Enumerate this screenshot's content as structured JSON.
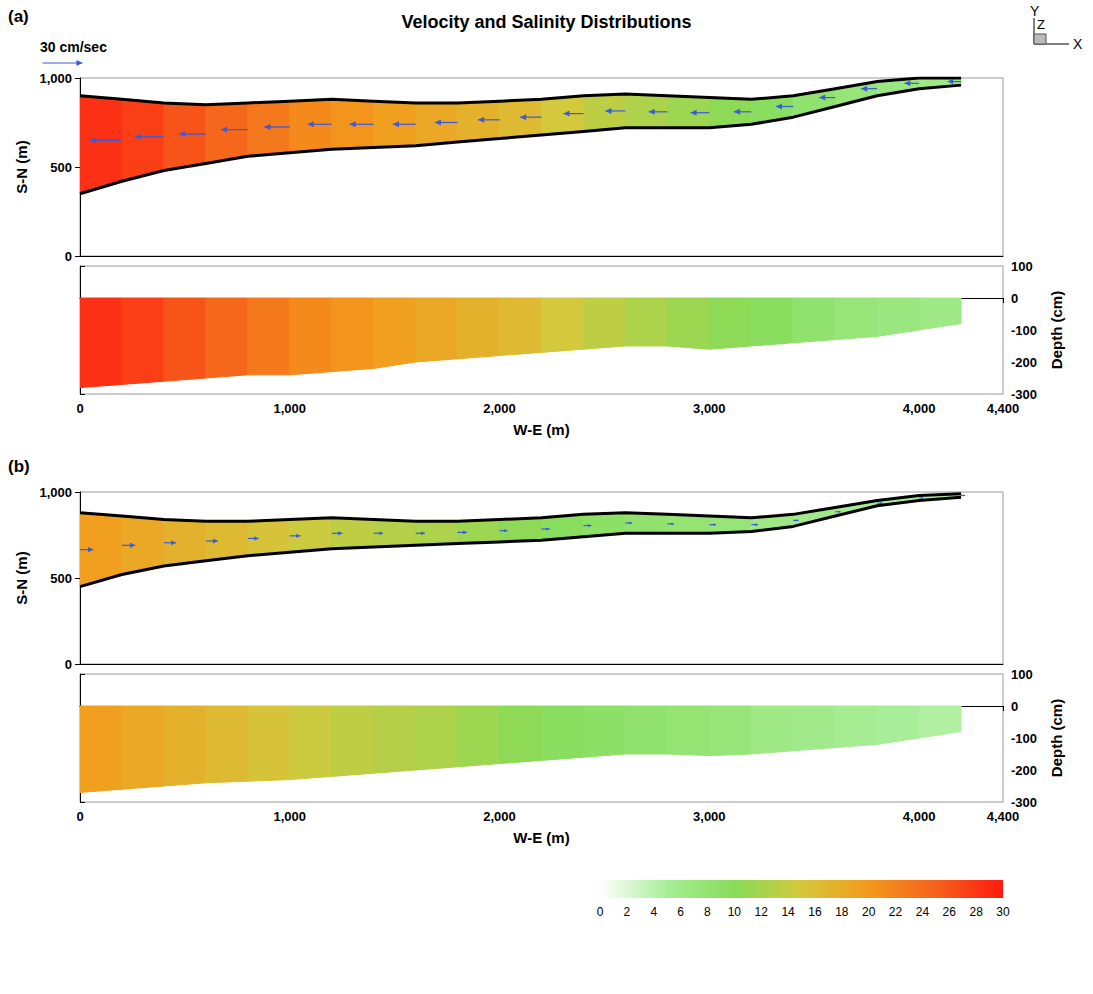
{
  "title": "Velocity and Salinity Distributions",
  "velocity_scale": {
    "label": "30 cm/sec",
    "value": 30
  },
  "triad": [
    "X",
    "Y",
    "Z"
  ],
  "colorbar": {
    "range": [
      0,
      30
    ],
    "ticks": [
      0,
      2,
      4,
      6,
      8,
      10,
      12,
      14,
      16,
      18,
      20,
      22,
      24,
      26,
      28,
      30
    ],
    "colors": [
      "#ffffff",
      "#a8ee98",
      "#86dc5a",
      "#d4c83c",
      "#f39a1c",
      "#f5621c",
      "#ff1a10"
    ]
  },
  "chart_data": [
    {
      "panel": "(a)",
      "type": "custom",
      "xlabel": "W-E (m)",
      "ylabel": "S-N (m)",
      "y2label": "Depth (cm)",
      "xlim": [
        0,
        4400
      ],
      "xticks": [
        0,
        1000,
        2000,
        3000,
        4000
      ],
      "ylim": [
        0,
        1000
      ],
      "yticks": [
        0,
        500,
        1000
      ],
      "y2lim": [
        -300,
        100
      ],
      "y2ticks": [
        -300,
        -200,
        -100,
        0,
        100
      ],
      "x": [
        0,
        200,
        400,
        600,
        800,
        1000,
        1200,
        1400,
        1600,
        1800,
        2000,
        2200,
        2400,
        2600,
        2800,
        3000,
        3200,
        3400,
        3600,
        3800,
        4000,
        4200
      ],
      "north_bank": [
        900,
        880,
        860,
        850,
        860,
        870,
        880,
        870,
        860,
        860,
        870,
        880,
        900,
        910,
        900,
        890,
        880,
        900,
        940,
        980,
        1000,
        1000
      ],
      "south_bank": [
        350,
        420,
        480,
        520,
        560,
        580,
        600,
        610,
        620,
        640,
        660,
        680,
        700,
        720,
        720,
        720,
        740,
        780,
        840,
        900,
        940,
        960
      ],
      "salinity": [
        29,
        28,
        27,
        25,
        24,
        22,
        21,
        20,
        19,
        18,
        17,
        16,
        14,
        13,
        12,
        11,
        10,
        9,
        8,
        7,
        7,
        6
      ],
      "velocity": [
        -25,
        -24,
        -22,
        -20,
        -20,
        -19,
        -18,
        -18,
        -17,
        -17,
        -16,
        -16,
        -15,
        -15,
        -14,
        -14,
        -13,
        -13,
        -12,
        -12,
        -11,
        -10
      ],
      "bed_depth": [
        -280,
        -270,
        -260,
        -250,
        -240,
        -240,
        -230,
        -220,
        -200,
        -190,
        -180,
        -170,
        -160,
        -150,
        -150,
        -160,
        -150,
        -140,
        -130,
        -120,
        -100,
        -80
      ]
    },
    {
      "panel": "(b)",
      "type": "custom",
      "xlabel": "W-E (m)",
      "ylabel": "S-N (m)",
      "y2label": "Depth (cm)",
      "xlim": [
        0,
        4400
      ],
      "xticks": [
        0,
        1000,
        2000,
        3000,
        4000
      ],
      "ylim": [
        0,
        1000
      ],
      "yticks": [
        0,
        500,
        1000
      ],
      "y2lim": [
        -300,
        100
      ],
      "y2ticks": [
        -300,
        -200,
        -100,
        0,
        100
      ],
      "x": [
        0,
        200,
        400,
        600,
        800,
        1000,
        1200,
        1400,
        1600,
        1800,
        2000,
        2200,
        2400,
        2600,
        2800,
        3000,
        3200,
        3400,
        3600,
        3800,
        4000,
        4200
      ],
      "north_bank": [
        880,
        860,
        840,
        830,
        830,
        840,
        850,
        840,
        830,
        830,
        840,
        850,
        870,
        880,
        870,
        860,
        850,
        870,
        910,
        950,
        980,
        990
      ],
      "south_bank": [
        450,
        520,
        570,
        600,
        630,
        650,
        670,
        680,
        690,
        700,
        710,
        720,
        740,
        760,
        760,
        760,
        770,
        800,
        860,
        920,
        950,
        970
      ],
      "salinity": [
        20,
        19,
        18,
        17,
        16,
        15,
        14,
        13,
        13,
        12,
        11,
        10,
        9,
        9,
        8,
        8,
        7,
        6,
        6,
        5,
        5,
        4
      ],
      "velocity": [
        10,
        10,
        9,
        9,
        8,
        8,
        8,
        7,
        7,
        7,
        6,
        6,
        6,
        5,
        5,
        5,
        5,
        4,
        4,
        4,
        3,
        3
      ],
      "bed_depth": [
        -270,
        -260,
        -250,
        -240,
        -235,
        -230,
        -220,
        -210,
        -200,
        -190,
        -180,
        -170,
        -160,
        -150,
        -150,
        -155,
        -150,
        -140,
        -130,
        -120,
        -100,
        -80
      ]
    }
  ]
}
